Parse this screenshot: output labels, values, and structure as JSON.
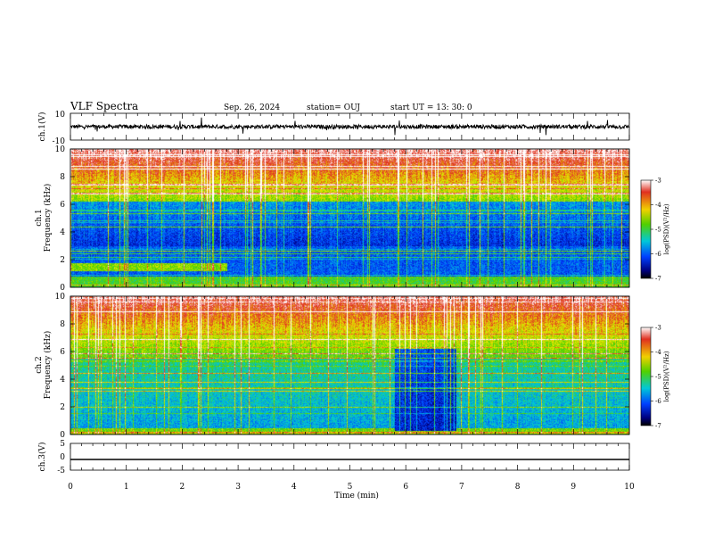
{
  "header": {
    "title": "VLF Spectra",
    "date": "Sep. 26, 2024",
    "station": "station= OUJ",
    "start": "start  UT  =   13: 30: 0"
  },
  "colorbar": {
    "label": "log(PSD)(V²/Hz)",
    "ticks": [
      "-3",
      "-4",
      "-5",
      "-6",
      "-7"
    ],
    "colors": [
      "#ffffff",
      "#e03020",
      "#f0c000",
      "#e8e800",
      "#40d000",
      "#00c8d8",
      "#0040ff",
      "#000080",
      "#000000"
    ]
  },
  "chart_data": [
    {
      "type": "line",
      "panel": "ch1-waveform",
      "ylabel": "ch.1(V)",
      "ylim": [
        -10,
        10
      ],
      "yticks": [
        "10",
        "-10"
      ],
      "description_values": {
        "baseline": 0,
        "typical_amplitude": 1.5
      }
    },
    {
      "type": "heatmap",
      "panel": "ch1-spectrogram",
      "ylabel": "ch.1\nFrequency (kHz)",
      "ylabel_lines": [
        "ch.1",
        "Frequency (kHz)"
      ],
      "ylim": [
        0,
        10
      ],
      "yticks": [
        "0",
        "2",
        "4",
        "6",
        "8",
        "10"
      ],
      "zlim": [
        -7,
        -3
      ]
    },
    {
      "type": "heatmap",
      "panel": "ch2-spectrogram",
      "ylabel_lines": [
        "ch.2",
        "Frequency (kHz)"
      ],
      "ylim": [
        0,
        10
      ],
      "yticks": [
        "0",
        "2",
        "4",
        "6",
        "8",
        "10"
      ],
      "zlim": [
        -7,
        -3
      ],
      "quiet_band_min": [
        5.8,
        6.9
      ]
    },
    {
      "type": "line",
      "panel": "ch3-waveform",
      "ylabel": "ch.3(V)",
      "ylim": [
        -5,
        5
      ],
      "yticks": [
        "5",
        "0",
        "-5"
      ],
      "constant_value": -1
    }
  ],
  "xaxis": {
    "label": "Time  (min)",
    "xlim": [
      0,
      10
    ],
    "ticks": [
      "0",
      "1",
      "2",
      "3",
      "4",
      "5",
      "6",
      "7",
      "8",
      "9",
      "10"
    ]
  }
}
